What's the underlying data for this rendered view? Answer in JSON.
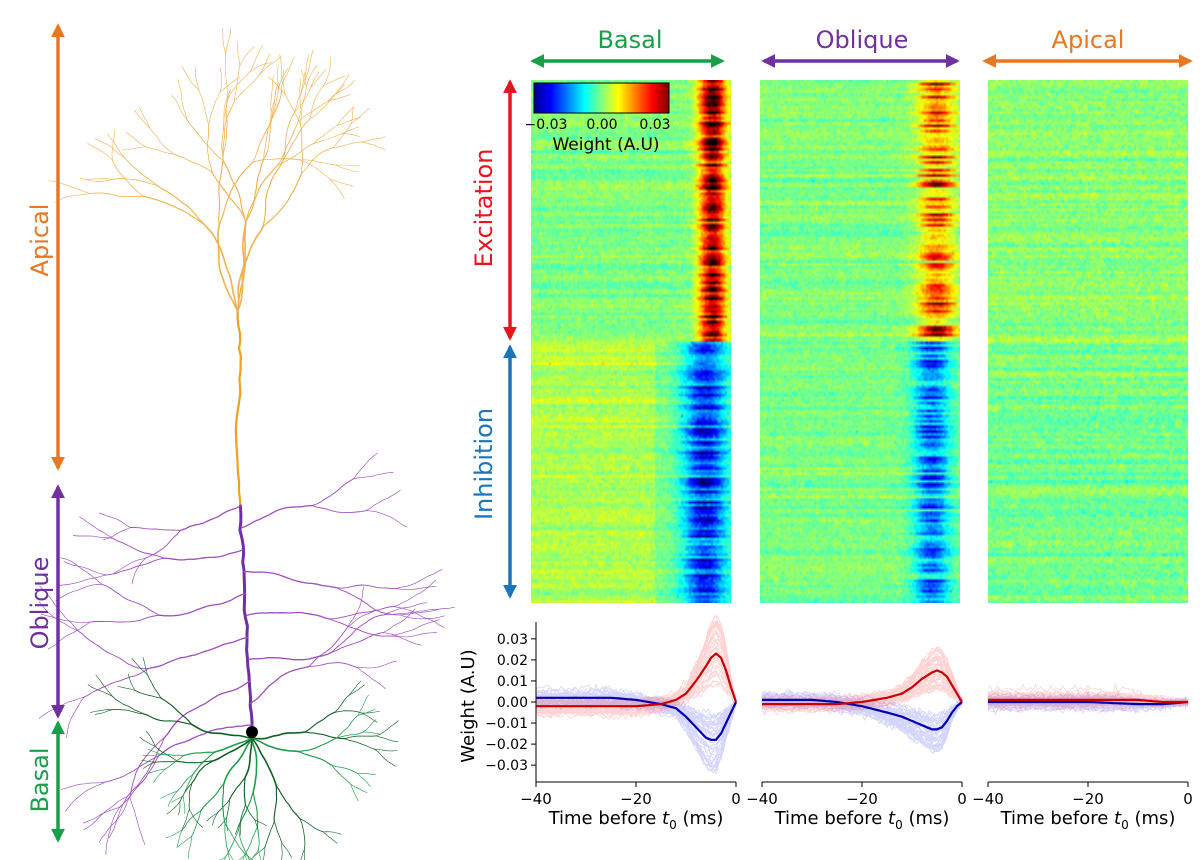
{
  "colors": {
    "apical": "#E87722",
    "apical_light": "#F2B14E",
    "oblique": "#7030A0",
    "oblique_light": "#A04DC0",
    "basal": "#1A9E4A",
    "basal_dark": "#0F5E22",
    "excitation": "#E8151C",
    "inhibition": "#1B75BC",
    "trace_exc": "#FF1010",
    "trace_inh": "#1A1AEE",
    "trace_exc_mean": "#C80000",
    "trace_inh_mean": "#0000B0",
    "soma": "#000000"
  },
  "neuron": {
    "labels": {
      "apical": "Apical",
      "oblique": "Oblique",
      "basal": "Basal"
    }
  },
  "heatmaps": {
    "panels": [
      {
        "key": "basal",
        "title": "Basal"
      },
      {
        "key": "oblique",
        "title": "Oblique"
      },
      {
        "key": "apical",
        "title": "Apical"
      }
    ],
    "row_labels": {
      "excitation": "Excitation",
      "inhibition": "Inhibition"
    },
    "colorbar": {
      "min": -0.03,
      "max": 0.03,
      "ticks": [
        "−0.03",
        "0.00",
        "0.03"
      ],
      "label": "Weight (A.U)",
      "colormap": "jet"
    }
  },
  "chart_data": {
    "type": "line",
    "panels": [
      "Basal",
      "Oblique",
      "Apical"
    ],
    "xlabel": "Time before t0 (ms)",
    "xlabel_main": "Time before ",
    "xlabel_sym": "t",
    "xlabel_sub": "0",
    "xlabel_unit": " (ms)",
    "ylabel": "Weight (A.U)",
    "xlim": [
      -40,
      0
    ],
    "ylim": [
      -0.038,
      0.038
    ],
    "x_ticks": [
      -40,
      -20,
      0
    ],
    "x_tick_labels": [
      "−40",
      "−20",
      "0"
    ],
    "y_ticks": [
      0.03,
      0.02,
      0.01,
      0.0,
      -0.01,
      -0.02,
      -0.03
    ],
    "y_tick_labels": [
      "0.03",
      "0.02",
      "0.01",
      "0.00",
      "−0.01",
      "−0.02",
      "−0.03"
    ],
    "mean_traces": {
      "basal": {
        "excitation": {
          "x": [
            -40,
            -35,
            -30,
            -25,
            -20,
            -15,
            -12,
            -10,
            -8,
            -6,
            -5,
            -4,
            -3,
            -2,
            -1,
            0
          ],
          "y": [
            -0.002,
            -0.002,
            -0.002,
            -0.002,
            -0.002,
            -0.001,
            0.001,
            0.004,
            0.01,
            0.017,
            0.021,
            0.023,
            0.021,
            0.015,
            0.007,
            0.0
          ]
        },
        "inhibition": {
          "x": [
            -40,
            -35,
            -30,
            -25,
            -20,
            -15,
            -12,
            -10,
            -8,
            -6,
            -5,
            -4,
            -3,
            -2,
            -1,
            0
          ],
          "y": [
            0.002,
            0.002,
            0.002,
            0.002,
            0.001,
            -0.001,
            -0.003,
            -0.007,
            -0.012,
            -0.017,
            -0.018,
            -0.018,
            -0.015,
            -0.01,
            -0.005,
            0.0
          ]
        }
      },
      "oblique": {
        "excitation": {
          "x": [
            -40,
            -35,
            -30,
            -25,
            -20,
            -15,
            -12,
            -10,
            -8,
            -6,
            -5,
            -4,
            -3,
            -2,
            -1,
            0
          ],
          "y": [
            -0.001,
            -0.001,
            -0.001,
            -0.001,
            0.0,
            0.002,
            0.004,
            0.007,
            0.011,
            0.014,
            0.015,
            0.014,
            0.012,
            0.008,
            0.004,
            0.0
          ]
        },
        "inhibition": {
          "x": [
            -40,
            -35,
            -30,
            -25,
            -20,
            -15,
            -12,
            -10,
            -8,
            -6,
            -5,
            -4,
            -3,
            -2,
            -1,
            0
          ],
          "y": [
            0.001,
            0.001,
            0.001,
            0.0,
            -0.002,
            -0.005,
            -0.007,
            -0.009,
            -0.011,
            -0.013,
            -0.013,
            -0.012,
            -0.009,
            -0.005,
            -0.002,
            0.0
          ]
        }
      },
      "apical": {
        "excitation": {
          "x": [
            -40,
            -30,
            -20,
            -10,
            -5,
            0
          ],
          "y": [
            0.001,
            0.001,
            0.001,
            0.001,
            0.0,
            0.0
          ]
        },
        "inhibition": {
          "x": [
            -40,
            -30,
            -20,
            -10,
            -5,
            0
          ],
          "y": [
            0.0,
            0.0,
            0.0,
            -0.001,
            -0.001,
            0.0
          ]
        }
      }
    }
  }
}
